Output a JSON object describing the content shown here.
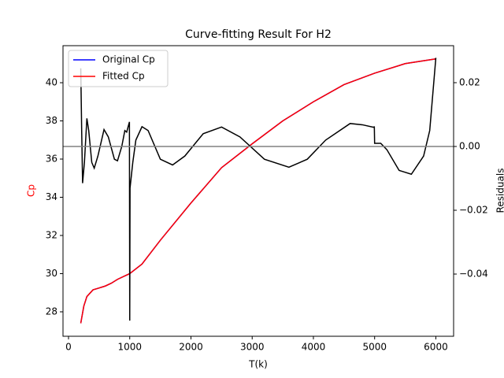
{
  "chart_data": {
    "type": "line",
    "title": "Curve-fitting Result For H2",
    "xlabel": "T(k)",
    "ylabel": "Cp",
    "ylabel_color": "#ff0000",
    "y2label": "Residuals",
    "x": [
      200,
      250,
      300,
      400,
      500,
      600,
      700,
      800,
      900,
      1000,
      1200,
      1500,
      2000,
      2500,
      3000,
      3500,
      4000,
      4500,
      5000,
      5500,
      6000
    ],
    "series": [
      {
        "name": "Original Cp",
        "color": "#0000ff",
        "values": [
          27.4,
          28.3,
          28.8,
          29.15,
          29.25,
          29.35,
          29.5,
          29.7,
          29.85,
          30.0,
          30.5,
          31.75,
          33.7,
          35.55,
          36.8,
          38.0,
          39.0,
          39.9,
          40.5,
          41.0,
          41.25
        ]
      },
      {
        "name": "Fitted Cp",
        "color": "#ff0000",
        "values": [
          27.4,
          28.3,
          28.8,
          29.15,
          29.25,
          29.35,
          29.5,
          29.7,
          29.85,
          30.0,
          30.5,
          31.75,
          33.7,
          35.55,
          36.8,
          38.0,
          39.0,
          39.9,
          40.5,
          41.0,
          41.25
        ]
      }
    ],
    "residuals": {
      "axis": "y2",
      "color": "#000000",
      "x": [
        200,
        215,
        230,
        260,
        300,
        330,
        380,
        420,
        480,
        580,
        650,
        750,
        800,
        870,
        920,
        950,
        995,
        1000,
        1005,
        1050,
        1100,
        1200,
        1300,
        1500,
        1700,
        1900,
        2200,
        2500,
        2800,
        3200,
        3600,
        3900,
        4200,
        4600,
        4800,
        4990,
        4995,
        5000,
        5100,
        5200,
        5400,
        5600,
        5800,
        5900,
        6000
      ],
      "values": [
        0.0245,
        0.005,
        -0.0115,
        -0.005,
        0.0088,
        0.005,
        -0.005,
        -0.0068,
        -0.003,
        0.0053,
        0.003,
        -0.004,
        -0.0045,
        0.0,
        0.005,
        0.0045,
        0.0077,
        -0.0546,
        -0.013,
        -0.005,
        0.002,
        0.0062,
        0.005,
        -0.004,
        -0.0058,
        -0.003,
        0.004,
        0.0061,
        0.003,
        -0.004,
        -0.0065,
        -0.004,
        0.002,
        0.0072,
        0.0068,
        0.006,
        0.0063,
        0.001,
        0.001,
        -0.001,
        -0.0075,
        -0.0087,
        -0.003,
        0.005,
        0.0278
      ]
    },
    "reference_line": {
      "axis": "y2",
      "value": 0,
      "color": "#808080"
    },
    "xlim": [
      -90,
      6290
    ],
    "ylim": [
      26.72,
      41.94
    ],
    "y2lim": [
      -0.0595,
      0.0316
    ],
    "xticks": [
      0,
      1000,
      2000,
      3000,
      4000,
      5000,
      6000
    ],
    "yticks": [
      28,
      30,
      32,
      34,
      36,
      38,
      40
    ],
    "y2ticks": [
      {
        "value": -0.04,
        "label": "−0.04"
      },
      {
        "value": -0.02,
        "label": "−0.02"
      },
      {
        "value": 0,
        "label": "0.00"
      },
      {
        "value": 0.02,
        "label": "0.02"
      }
    ],
    "legend": "upper left"
  }
}
